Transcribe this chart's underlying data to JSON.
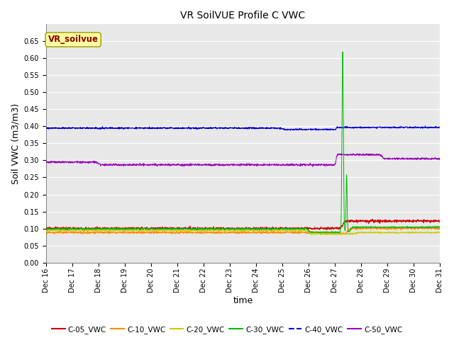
{
  "title": "VR SoilVUE Profile C VWC",
  "xlabel": "time",
  "ylabel": "Soil VWC (m3/m3)",
  "ylim": [
    0.0,
    0.7
  ],
  "yticks": [
    0.0,
    0.05,
    0.1,
    0.15,
    0.2,
    0.25,
    0.3,
    0.35,
    0.4,
    0.45,
    0.5,
    0.55,
    0.6,
    0.65
  ],
  "legend_label": "VR_soilvue",
  "legend_box_facecolor": "#FFFFA0",
  "legend_box_edgecolor": "#999900",
  "legend_text_color": "#880000",
  "series_colors": {
    "C-05_VWC": "#CC0000",
    "C-10_VWC": "#FF8800",
    "C-20_VWC": "#CCCC00",
    "C-30_VWC": "#00BB00",
    "C-40_VWC": "#0000CC",
    "C-50_VWC": "#9900BB"
  },
  "plot_bg_color": "#E8E8E8",
  "fig_bg_color": "#FFFFFF",
  "grid_color": "#FFFFFF",
  "n_points": 2000,
  "num_days": 15,
  "event_day": 11.3
}
